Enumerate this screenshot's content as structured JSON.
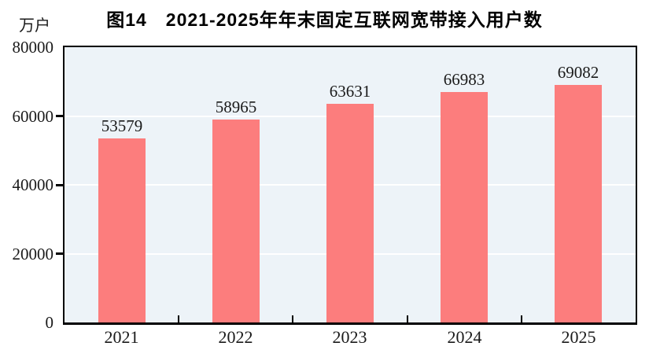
{
  "chart_data": {
    "type": "bar",
    "title": "图14　2021-2025年年末固定互联网宽带接入用户数",
    "unit": "万户",
    "ylabel": "万户",
    "xlabel": "",
    "categories": [
      "2021",
      "2022",
      "2023",
      "2024",
      "2025"
    ],
    "values": [
      53579,
      58965,
      63631,
      66983,
      69082
    ],
    "value_labels": [
      "53579",
      "58965",
      "63631",
      "66983",
      "69082"
    ],
    "ylim": [
      0,
      80000
    ],
    "yticks": [
      0,
      20000,
      40000,
      60000,
      80000
    ],
    "ytick_labels": [
      "0",
      "20000",
      "40000",
      "60000",
      "80000"
    ],
    "gridlines_at": [
      20000,
      40000,
      60000
    ],
    "grid": true,
    "legend_position": "none",
    "colors": {
      "bar": "#FC7D7D",
      "plot_background": "#EDF3F8",
      "gridline": "#FFFFFF",
      "axis": "#000000",
      "text": "#1A1A1A",
      "title": "#000000"
    }
  }
}
